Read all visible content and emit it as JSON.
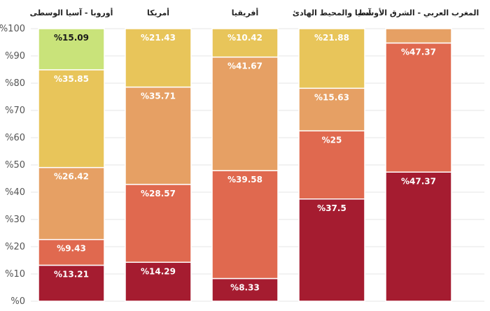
{
  "chart_data": {
    "type": "bar",
    "stacked": true,
    "categories": [
      "أوروبا - آسيا الوسطى",
      "أمريكا",
      "أفريقيا",
      "آسيا والمحيط الهادئ",
      "المغرب العربي - الشرق الأوسط"
    ],
    "series": [
      {
        "color": "#a51c30",
        "values": [
          13.21,
          14.29,
          8.33,
          37.5,
          47.37
        ]
      },
      {
        "color": "#e0694f",
        "values": [
          9.43,
          28.57,
          39.58,
          25,
          47.37
        ]
      },
      {
        "color": "#e6a064",
        "values": [
          26.42,
          35.71,
          41.67,
          15.63,
          5.26
        ]
      },
      {
        "color": "#e8c55a",
        "values": [
          35.85,
          21.43,
          10.42,
          21.88,
          0
        ]
      },
      {
        "color": "#c9e37a",
        "values": [
          15.09,
          0,
          0,
          0,
          0
        ]
      }
    ],
    "data_labels": [
      [
        "%13.21",
        "%14.29",
        "%8.33",
        "%37.5",
        "%47.37"
      ],
      [
        "%9.43",
        "%28.57",
        "%39.58",
        "%25",
        "%47.37"
      ],
      [
        "%26.42",
        "%35.71",
        "%41.67",
        "%15.63",
        ""
      ],
      [
        "%35.85",
        "%21.43",
        "%10.42",
        "%21.88",
        ""
      ],
      [
        "%15.09",
        "",
        "",
        "",
        ""
      ]
    ],
    "ylim": [
      0,
      100
    ],
    "y_ticks": [
      0,
      10,
      20,
      30,
      40,
      50,
      60,
      70,
      80,
      90,
      100
    ],
    "y_tick_labels": [
      "%0",
      "%10",
      "%20",
      "%30",
      "%40",
      "%50",
      "%60",
      "%70",
      "%80",
      "%90",
      "%100"
    ],
    "grid": true,
    "category_labels_position": "top"
  }
}
